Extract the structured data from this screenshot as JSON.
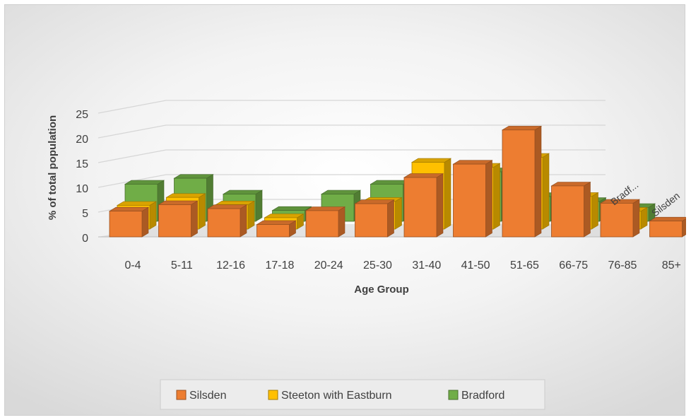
{
  "chart_data": {
    "type": "bar",
    "style": "3d-clustered-column",
    "categories": [
      "0-4",
      "5-11",
      "12-16",
      "17-18",
      "20-24",
      "25-30",
      "31-40",
      "41-50",
      "51-65",
      "66-75",
      "76-85",
      "85+"
    ],
    "series": [
      {
        "name": "Silsden",
        "color": "#ED7D31",
        "values": [
          5.2,
          6.5,
          5.7,
          2.5,
          5.3,
          6.7,
          12,
          14.7,
          21.6,
          10.3,
          6.8,
          3.2
        ]
      },
      {
        "name": "Steeton with Eastburn",
        "color": "#FFC000",
        "values": [
          4.8,
          6.4,
          4.9,
          2.3,
          0,
          5.6,
          13.5,
          12.5,
          14.5,
          6.6,
          3.6,
          1.6
        ]
      },
      {
        "name": "Bradford",
        "color": "#70AD47",
        "values": [
          7.5,
          8.7,
          5.5,
          2.2,
          5.5,
          7.5,
          0,
          10,
          5,
          4,
          2.8,
          0
        ]
      }
    ],
    "xlabel": "Age Group",
    "ylabel": "% of total population",
    "ylim": [
      0,
      25
    ],
    "yticks": [
      "0",
      "5",
      "10",
      "15",
      "20",
      "25"
    ],
    "grid": true,
    "legend_position": "bottom",
    "depth_axis_labels": [
      "Bradf...",
      "Silsden"
    ]
  }
}
